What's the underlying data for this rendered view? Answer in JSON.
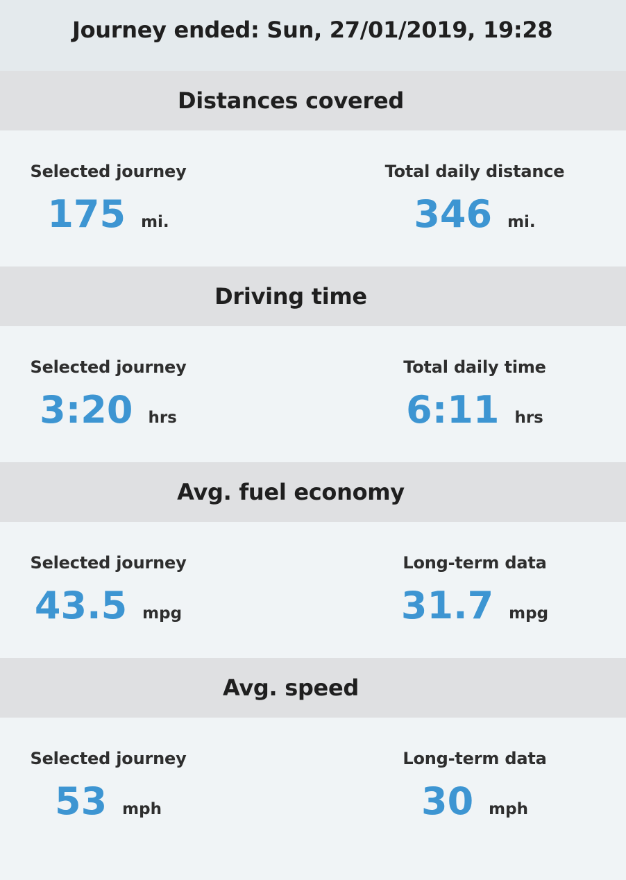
{
  "header": {
    "title": "Journey ended: Sun, 27/01/2019, 19:28"
  },
  "sections": [
    {
      "title": "Distances covered",
      "left": {
        "caption": "Selected journey",
        "value": "175",
        "unit": "mi."
      },
      "right": {
        "caption": "Total daily distance",
        "value": "346",
        "unit": "mi."
      }
    },
    {
      "title": "Driving time",
      "left": {
        "caption": "Selected journey",
        "value": "3:20",
        "unit": "hrs"
      },
      "right": {
        "caption": "Total daily time",
        "value": "6:11",
        "unit": "hrs"
      }
    },
    {
      "title": "Avg. fuel economy",
      "left": {
        "caption": "Selected journey",
        "value": "43.5",
        "unit": "mpg"
      },
      "right": {
        "caption": "Long-term data",
        "value": "31.7",
        "unit": "mpg"
      }
    },
    {
      "title": "Avg. speed",
      "left": {
        "caption": "Selected journey",
        "value": "53",
        "unit": "mph"
      },
      "right": {
        "caption": "Long-term data",
        "value": "30",
        "unit": "mph"
      }
    }
  ],
  "colors": {
    "value_blue": "#3d95d2",
    "header_bg": "#e4eaed",
    "section_header_bg": "#dfe0e2",
    "body_bg": "#f0f4f6"
  }
}
